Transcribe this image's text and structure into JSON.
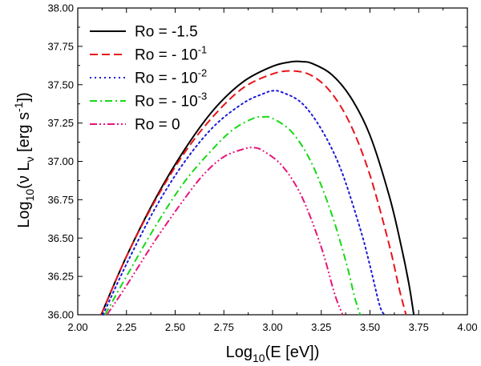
{
  "chart_data": {
    "type": "line",
    "title": "",
    "xlabel": {
      "main": "Log",
      "sub": "10",
      "rest": "(E [eV])"
    },
    "ylabel": {
      "main": "Log",
      "sub": "10",
      "rest1": "(ν L",
      "nu": "ν",
      "rest2": " [erg s",
      "sup": "-1",
      "rest3": "])"
    },
    "xlim": [
      2.0,
      4.0
    ],
    "ylim": [
      36.0,
      38.0
    ],
    "xticks": [
      2.0,
      2.25,
      2.5,
      2.75,
      3.0,
      3.25,
      3.5,
      3.75,
      4.0
    ],
    "xtick_labels": [
      "2.00",
      "2.25",
      "2.50",
      "2.75",
      "3.00",
      "3.25",
      "3.50",
      "3.75",
      "4.00"
    ],
    "yticks": [
      36.0,
      36.25,
      36.5,
      36.75,
      37.0,
      37.25,
      37.5,
      37.75,
      38.0
    ],
    "ytick_labels": [
      "36.00",
      "36.25",
      "36.50",
      "36.75",
      "37.00",
      "37.25",
      "37.50",
      "37.75",
      "38.00"
    ],
    "legend_position": "top-left",
    "series": [
      {
        "name": "Ro = -1.5",
        "label_base": "Ro = -1.5",
        "label_sup": "",
        "color": "#000000",
        "dash": "solid",
        "x": [
          2.12,
          2.25,
          2.4,
          2.55,
          2.7,
          2.85,
          3.0,
          3.1,
          3.15,
          3.2,
          3.3,
          3.4,
          3.5,
          3.6,
          3.66,
          3.7,
          3.725
        ],
        "y": [
          36.0,
          36.38,
          36.76,
          37.08,
          37.34,
          37.52,
          37.62,
          37.65,
          37.65,
          37.64,
          37.57,
          37.42,
          37.17,
          36.77,
          36.45,
          36.2,
          36.0
        ]
      },
      {
        "name": "Ro = - 10^-1",
        "label_base": "Ro = - 10",
        "label_sup": "-1",
        "color": "#e8141c",
        "dash": "dashed",
        "x": [
          2.12,
          2.25,
          2.4,
          2.55,
          2.7,
          2.85,
          3.0,
          3.1,
          3.2,
          3.3,
          3.4,
          3.5,
          3.6,
          3.65,
          3.685
        ],
        "y": [
          36.0,
          36.38,
          36.75,
          37.06,
          37.3,
          37.48,
          37.57,
          37.59,
          37.56,
          37.45,
          37.24,
          36.91,
          36.45,
          36.17,
          36.0
        ]
      },
      {
        "name": "Ro = - 10^-2",
        "label_base": "Ro = - 10",
        "label_sup": "-2",
        "color": "#1b1bd6",
        "dash": "dotted",
        "x": [
          2.13,
          2.25,
          2.4,
          2.55,
          2.7,
          2.85,
          2.95,
          3.0,
          3.05,
          3.15,
          3.25,
          3.35,
          3.45,
          3.5,
          3.55,
          3.575
        ],
        "y": [
          36.0,
          36.33,
          36.7,
          37.0,
          37.23,
          37.38,
          37.44,
          37.46,
          37.45,
          37.38,
          37.21,
          36.95,
          36.56,
          36.32,
          36.06,
          36.0
        ]
      },
      {
        "name": "Ro = - 10^-3",
        "label_base": "Ro = - 10",
        "label_sup": "-3",
        "color": "#16d916",
        "dash": "dashdot",
        "x": [
          2.14,
          2.25,
          2.4,
          2.55,
          2.7,
          2.8,
          2.9,
          2.95,
          3.0,
          3.1,
          3.2,
          3.3,
          3.38,
          3.42,
          3.45
        ],
        "y": [
          36.0,
          36.25,
          36.58,
          36.87,
          37.09,
          37.21,
          37.28,
          37.29,
          37.28,
          37.19,
          36.99,
          36.67,
          36.33,
          36.12,
          36.0
        ]
      },
      {
        "name": "Ro = 0",
        "label_base": "Ro = 0",
        "label_sup": "",
        "color": "#e8147a",
        "dash": "dashdotdot",
        "x": [
          2.15,
          2.25,
          2.4,
          2.55,
          2.65,
          2.75,
          2.85,
          2.9,
          2.95,
          3.05,
          3.15,
          3.25,
          3.32,
          3.36
        ],
        "y": [
          36.0,
          36.19,
          36.49,
          36.76,
          36.92,
          37.03,
          37.08,
          37.09,
          37.07,
          36.97,
          36.77,
          36.44,
          36.13,
          36.0
        ]
      }
    ]
  }
}
